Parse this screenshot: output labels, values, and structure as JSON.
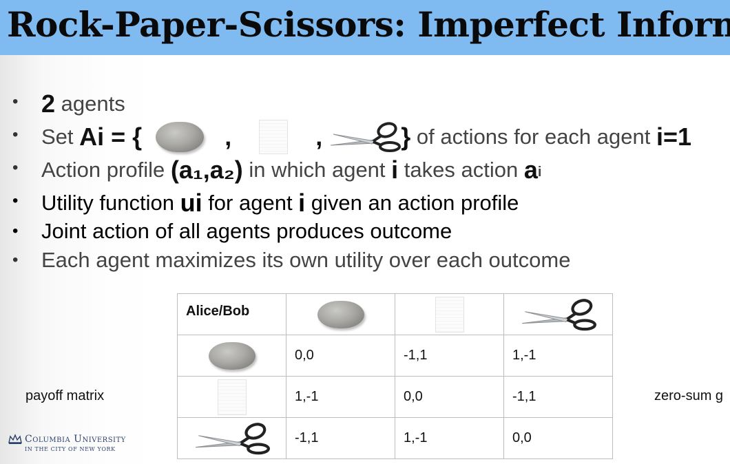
{
  "slide": {
    "title": "Rock-Paper-Scissors: Imperfect Informa"
  },
  "bullets": {
    "b1": {
      "bold": "2",
      "text": " agents"
    },
    "b2": {
      "prefix": "Set ",
      "set_open": "Ai = {",
      "comma1": ",",
      "comma2": ",",
      "set_close": "}",
      "suffix": " of actions for each agent ",
      "agent_var": "i=1"
    },
    "b3": {
      "prefix": "Action profile ",
      "profile": "(a₁,a₂)",
      "middle": " in which agent ",
      "agent": "i",
      "middle2": " takes action ",
      "action": "a",
      "action_sub": "i"
    },
    "b4": {
      "prefix": "Utility function ",
      "u": "ui",
      "middle": " for agent ",
      "agent": "i",
      "suffix": " given an action profile"
    },
    "b5": {
      "text": "Joint action of all agents produces outcome"
    },
    "b6": {
      "text": "Each agent maximizes its own utility over each outcome"
    },
    "bullet_char": "•"
  },
  "payoff": {
    "header": "Alice/Bob",
    "rows": [
      {
        "icon": "rock-icon",
        "cells": [
          "0,0",
          "-1,1",
          "1,-1"
        ]
      },
      {
        "icon": "paper-icon",
        "cells": [
          "1,-1",
          "0,0",
          "-1,1"
        ]
      },
      {
        "icon": "scissors-icon",
        "cells": [
          "-1,1",
          "1,-1",
          "0,0"
        ]
      }
    ],
    "columns": [
      "rock-icon",
      "paper-icon",
      "scissors-icon"
    ]
  },
  "side_labels": {
    "left": "payoff matrix",
    "right": "zero-sum g"
  },
  "logo": {
    "name": "Columbia University",
    "tagline": "IN THE CITY OF NEW YORK"
  },
  "colors": {
    "title_bar": "#7fbbf0",
    "logo_blue": "#2a3f6b"
  }
}
